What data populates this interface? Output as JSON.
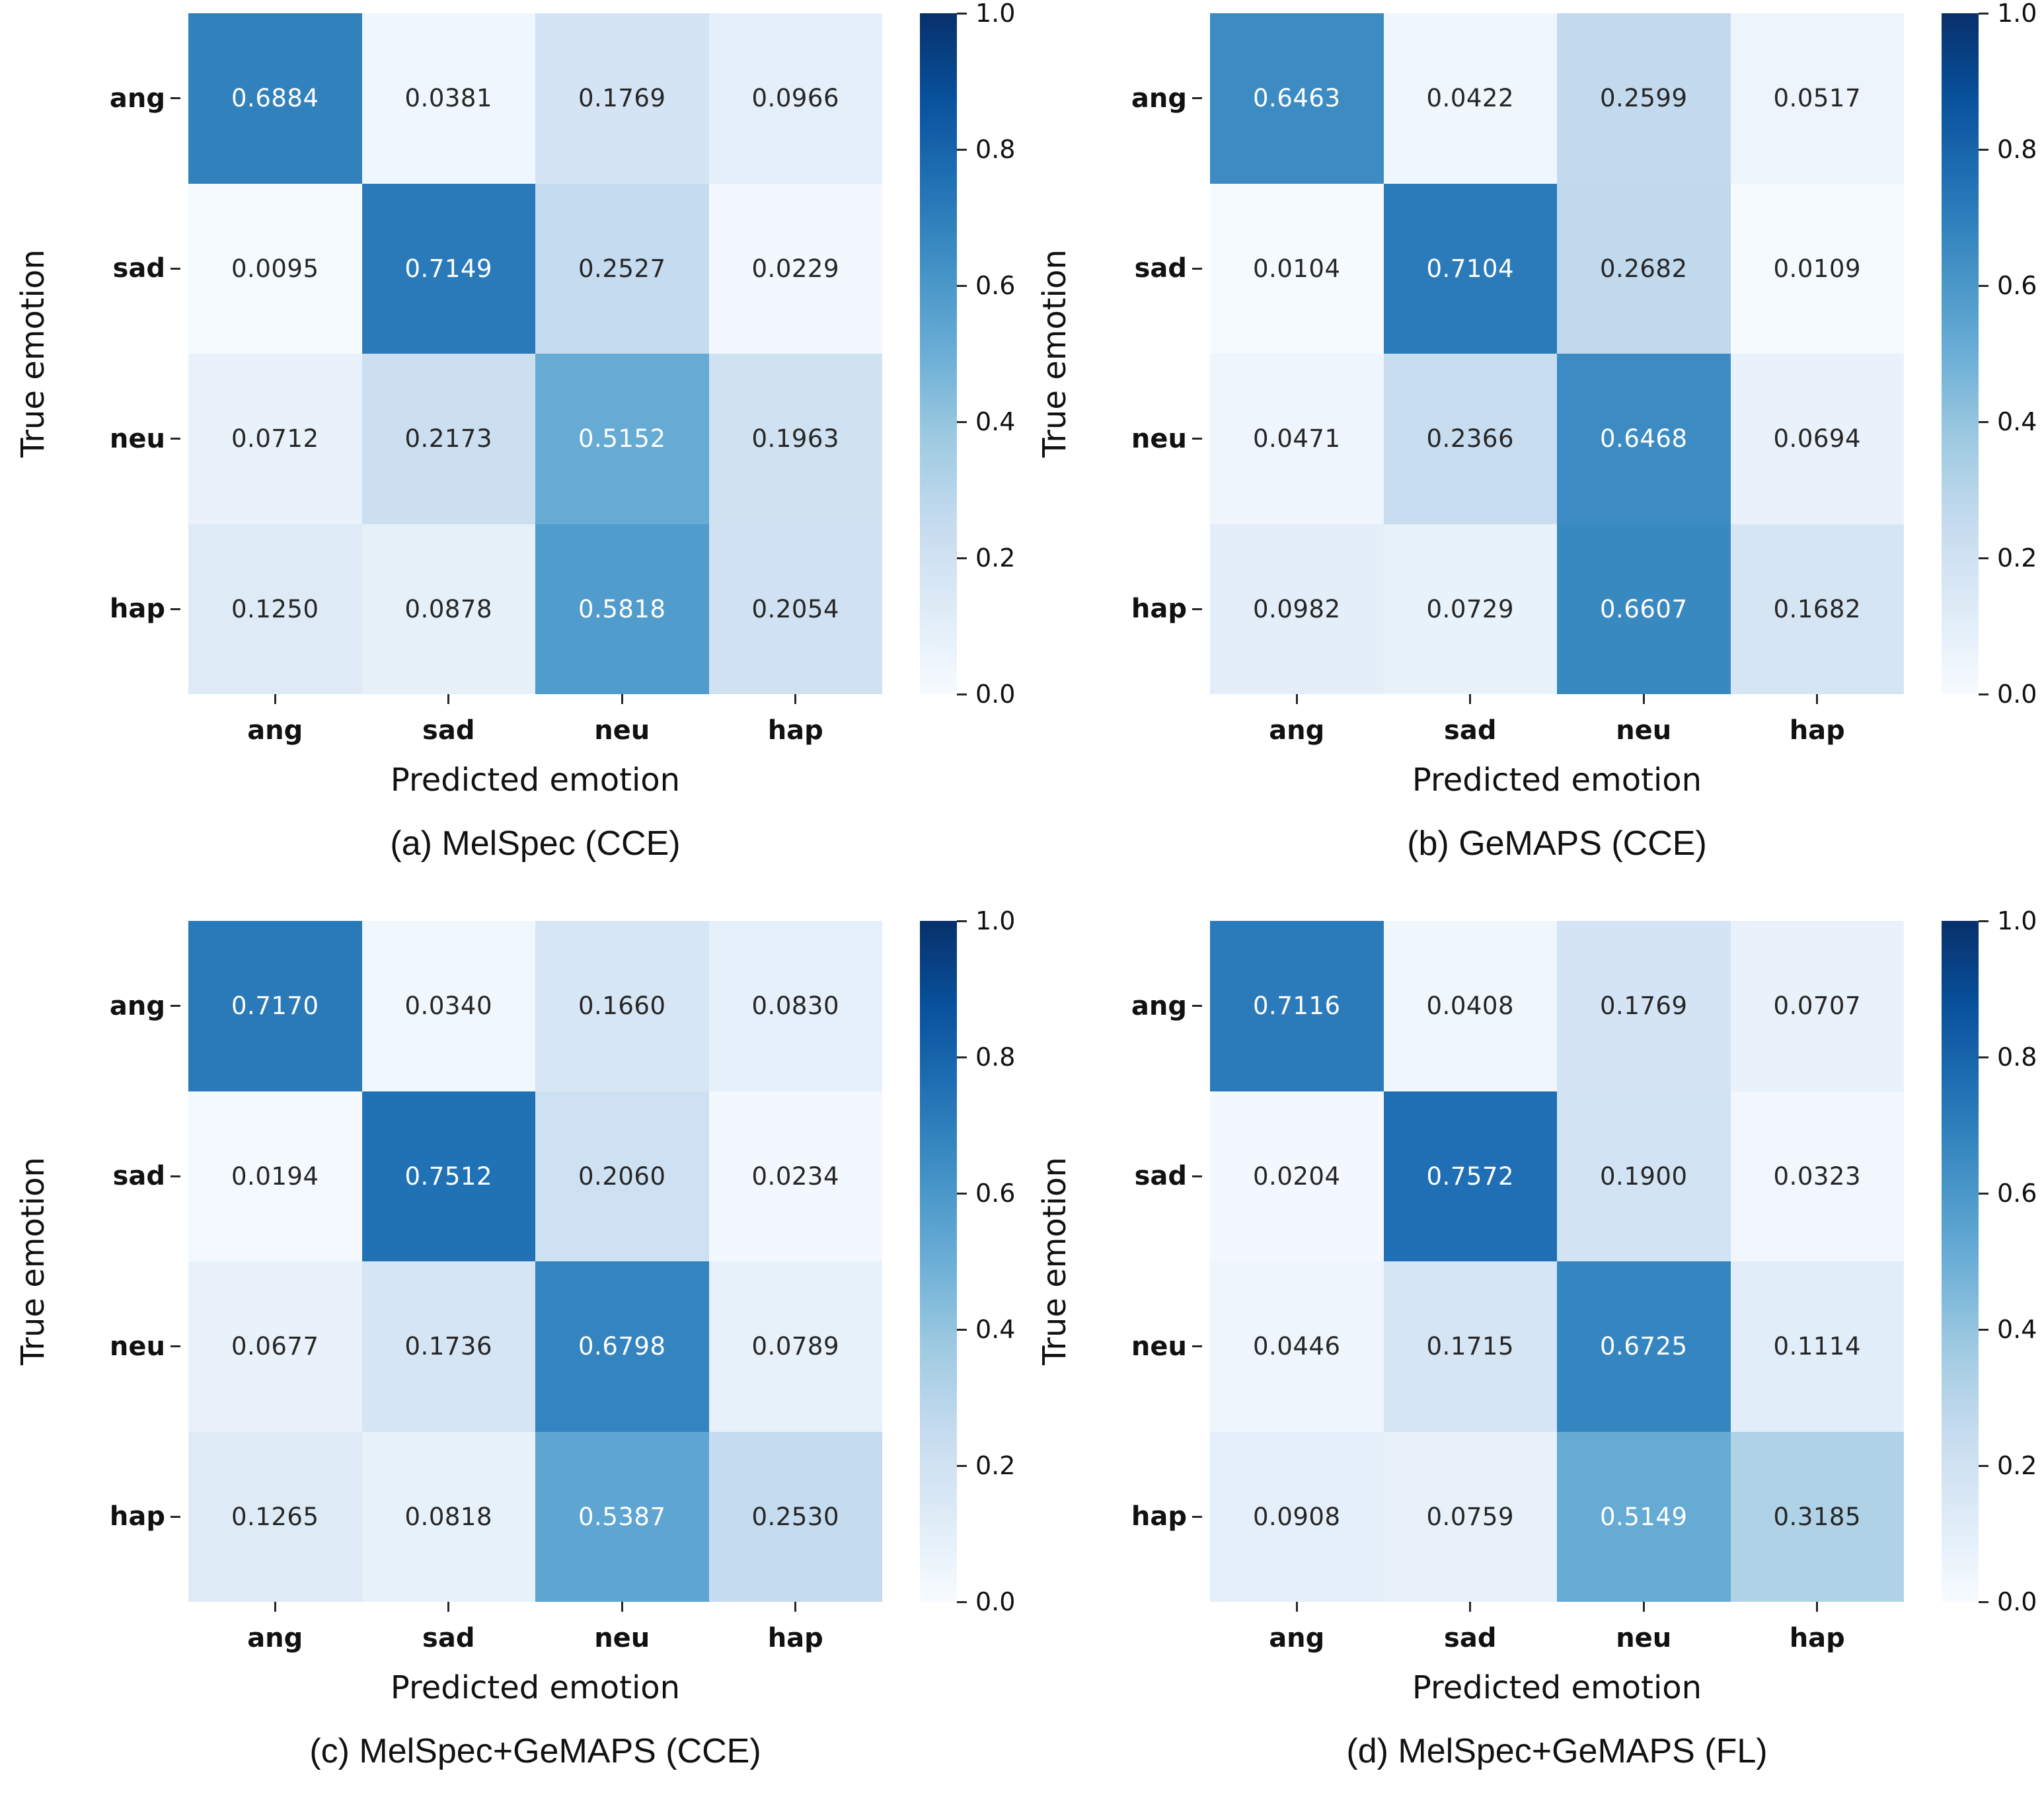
{
  "figure": {
    "xlabel": "Predicted emotion",
    "ylabel": "True emotion",
    "categories": [
      "ang",
      "sad",
      "neu",
      "hap"
    ],
    "colorbar": {
      "ticks": [
        "1.0",
        "0.8",
        "0.6",
        "0.4",
        "0.2",
        "0.0"
      ],
      "vmin": 0.0,
      "vmax": 1.0
    },
    "colormap": {
      "name": "Blues",
      "anchors": [
        "#f7fbff",
        "#deebf7",
        "#c6dbef",
        "#9ecae1",
        "#6baed6",
        "#4292c6",
        "#2171b5",
        "#08519c",
        "#08306b"
      ]
    },
    "annotation_text_colors": {
      "light": "#ffffff",
      "dark": "#262626"
    }
  },
  "chart_data": [
    {
      "type": "heatmap",
      "title": "(a) MelSpec (CCE)",
      "xlabel": "Predicted emotion",
      "ylabel": "True emotion",
      "x_tick_labels": [
        "ang",
        "sad",
        "neu",
        "hap"
      ],
      "y_tick_labels": [
        "ang",
        "sad",
        "neu",
        "hap"
      ],
      "value_range": [
        0.0,
        1.0
      ],
      "matrix": [
        [
          0.6884,
          0.0381,
          0.1769,
          0.0966
        ],
        [
          0.0095,
          0.7149,
          0.2527,
          0.0229
        ],
        [
          0.0712,
          0.2173,
          0.5152,
          0.1963
        ],
        [
          0.125,
          0.0878,
          0.5818,
          0.2054
        ]
      ]
    },
    {
      "type": "heatmap",
      "title": "(b) GeMAPS (CCE)",
      "xlabel": "Predicted emotion",
      "ylabel": "True emotion",
      "x_tick_labels": [
        "ang",
        "sad",
        "neu",
        "hap"
      ],
      "y_tick_labels": [
        "ang",
        "sad",
        "neu",
        "hap"
      ],
      "value_range": [
        0.0,
        1.0
      ],
      "matrix": [
        [
          0.6463,
          0.0422,
          0.2599,
          0.0517
        ],
        [
          0.0104,
          0.7104,
          0.2682,
          0.0109
        ],
        [
          0.0471,
          0.2366,
          0.6468,
          0.0694
        ],
        [
          0.0982,
          0.0729,
          0.6607,
          0.1682
        ]
      ]
    },
    {
      "type": "heatmap",
      "title": "(c) MelSpec+GeMAPS (CCE)",
      "xlabel": "Predicted emotion",
      "ylabel": "True emotion",
      "x_tick_labels": [
        "ang",
        "sad",
        "neu",
        "hap"
      ],
      "y_tick_labels": [
        "ang",
        "sad",
        "neu",
        "hap"
      ],
      "value_range": [
        0.0,
        1.0
      ],
      "matrix": [
        [
          0.717,
          0.034,
          0.166,
          0.083
        ],
        [
          0.0194,
          0.7512,
          0.206,
          0.0234
        ],
        [
          0.0677,
          0.1736,
          0.6798,
          0.0789
        ],
        [
          0.1265,
          0.0818,
          0.5387,
          0.253
        ]
      ]
    },
    {
      "type": "heatmap",
      "title": "(d) MelSpec+GeMAPS (FL)",
      "xlabel": "Predicted emotion",
      "ylabel": "True emotion",
      "x_tick_labels": [
        "ang",
        "sad",
        "neu",
        "hap"
      ],
      "y_tick_labels": [
        "ang",
        "sad",
        "neu",
        "hap"
      ],
      "value_range": [
        0.0,
        1.0
      ],
      "matrix": [
        [
          0.7116,
          0.0408,
          0.1769,
          0.0707
        ],
        [
          0.0204,
          0.7572,
          0.19,
          0.0323
        ],
        [
          0.0446,
          0.1715,
          0.6725,
          0.1114
        ],
        [
          0.0908,
          0.0759,
          0.5149,
          0.3185
        ]
      ]
    }
  ]
}
